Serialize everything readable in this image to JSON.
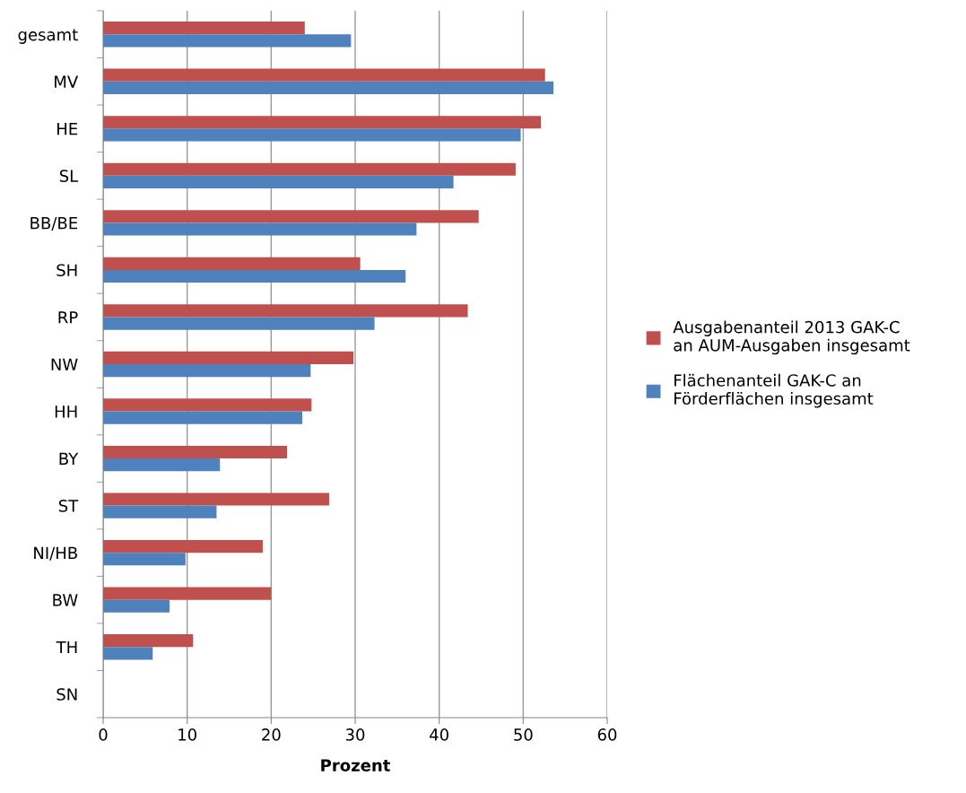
{
  "chart_data": {
    "type": "bar",
    "orientation": "horizontal",
    "xlabel": "Prozent",
    "categories": [
      "gesamt",
      "MV",
      "HE",
      "SL",
      "BB/BE",
      "SH",
      "RP",
      "NW",
      "HH",
      "BY",
      "ST",
      "NI/HB",
      "BW",
      "TH",
      "SN"
    ],
    "series": [
      {
        "name": "Ausgabenanteil 2013 GAK-C an AUM-Ausgaben insgesamt",
        "color": "#c0504d",
        "values": [
          24.0,
          52.6,
          52.1,
          49.1,
          44.7,
          30.6,
          43.4,
          29.8,
          24.8,
          21.9,
          26.9,
          19.0,
          20.0,
          10.7,
          0
        ]
      },
      {
        "name": "Flächenanteil GAK-C an Förderflächen insgesamt",
        "color": "#4f81bd",
        "values": [
          29.5,
          53.6,
          49.7,
          41.7,
          37.3,
          36.0,
          32.3,
          24.7,
          23.7,
          13.9,
          13.5,
          9.8,
          7.9,
          5.9,
          0
        ]
      }
    ],
    "xlim": [
      0,
      60
    ],
    "xticks": [
      0,
      10,
      20,
      30,
      40,
      50,
      60
    ],
    "grid": "x",
    "legend": "right"
  }
}
